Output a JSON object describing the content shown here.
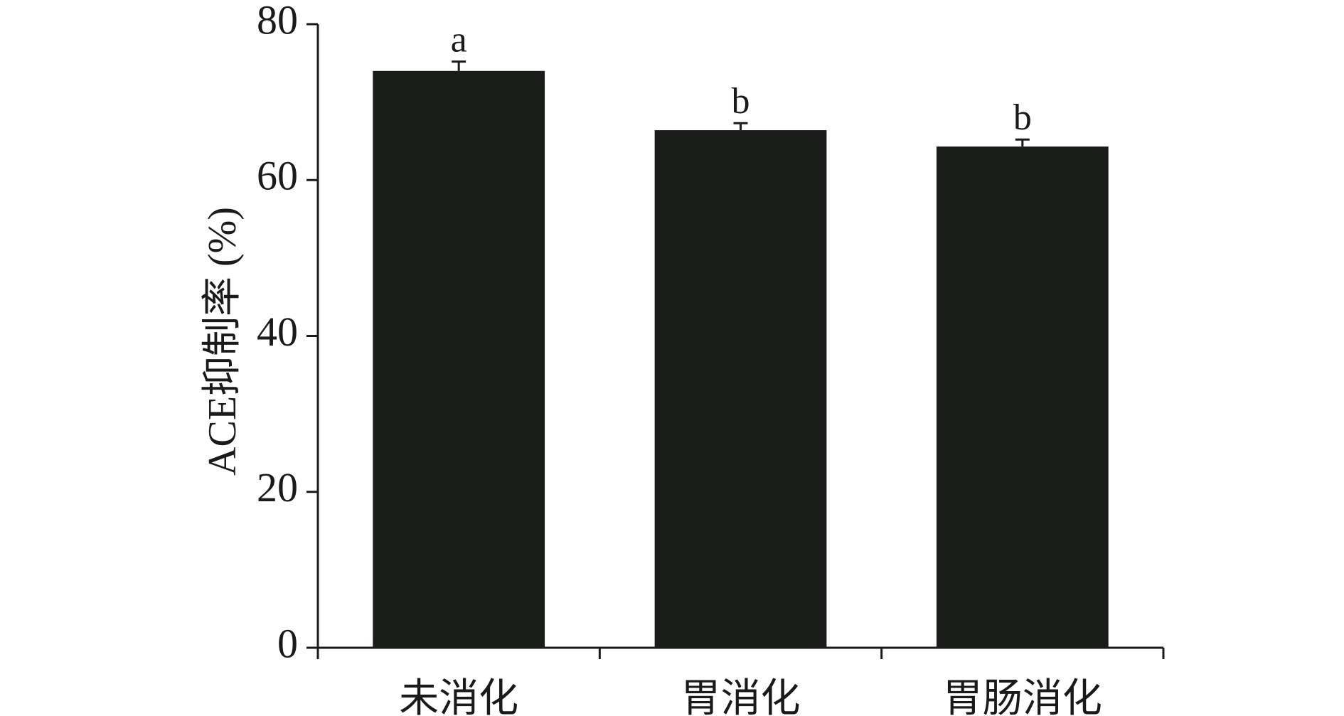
{
  "chart_data": {
    "type": "bar",
    "y_label": "ACE抑制率 (%)",
    "categories": [
      "未消化",
      "胃消化",
      "胃肠消化"
    ],
    "values": [
      74.0,
      66.4,
      64.3
    ],
    "errors": [
      1.2,
      0.9,
      0.9
    ],
    "annotations": [
      "a",
      "b",
      "b"
    ],
    "color": "#1a1c1a",
    "ylim": [
      0,
      80
    ],
    "yticks": [
      0,
      20,
      40,
      60,
      80
    ],
    "grid": false
  }
}
